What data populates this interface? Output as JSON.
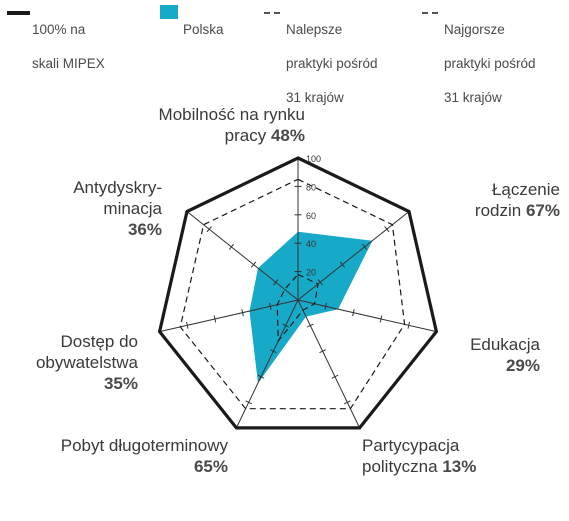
{
  "legend": {
    "max": {
      "line1": "100% na",
      "line2": "skali MIPEX"
    },
    "polska": {
      "label": "Polska"
    },
    "best": {
      "line1": "Nalepsze",
      "line2": "praktyki pośród",
      "line3": "31 krajów"
    },
    "worst": {
      "line1": "Najgorsze",
      "line2": "praktyki pośród",
      "line3": "31 krajów"
    }
  },
  "colors": {
    "polska": "#17a9c8",
    "max_line": "#1a1a1a",
    "dashed": "#1a1a1a",
    "axis": "#333333"
  },
  "chart_data": {
    "type": "radar",
    "scale_max": 100,
    "scale_ticks": [
      "20",
      "40",
      "60",
      "80",
      "100"
    ],
    "axes": [
      {
        "key": "mobility",
        "name_lines": [
          "Mobilność na rynku",
          "pracy"
        ],
        "value_text": "48%",
        "value": 48
      },
      {
        "key": "family",
        "name_lines": [
          "Łączenie",
          "rodzin"
        ],
        "value_text": "67%",
        "value": 67
      },
      {
        "key": "education",
        "name_lines": [
          "Edukacja"
        ],
        "value_text": "29%",
        "value": 29
      },
      {
        "key": "political",
        "name_lines": [
          "Partycypacja",
          "polityczna"
        ],
        "value_text": "13%",
        "value": 13
      },
      {
        "key": "residence",
        "name_lines": [
          "Pobyt długoterminowy"
        ],
        "value_text": "65%",
        "value": 65
      },
      {
        "key": "citizenship",
        "name_lines": [
          "Dostęp do",
          "obywatelstwa"
        ],
        "value_text": "35%",
        "value": 35
      },
      {
        "key": "antidiscrimination",
        "name_lines": [
          "Antydyskry-",
          "minacja"
        ],
        "value_text": "36%",
        "value": 36
      }
    ],
    "series": [
      {
        "name": "100% na skali MIPEX",
        "values": [
          100,
          100,
          100,
          100,
          100,
          100,
          100
        ],
        "style": "solid-thick"
      },
      {
        "name": "Polska",
        "values": [
          48,
          67,
          29,
          13,
          65,
          35,
          36
        ],
        "style": "filled"
      },
      {
        "name": "Nalepsze praktyki pośród 31 krajów",
        "values": [
          85,
          85,
          77,
          85,
          85,
          85,
          85
        ],
        "style": "dashed"
      },
      {
        "name": "Najgorsze praktyki pośród 31 krajów",
        "values": [
          18,
          18,
          12,
          8,
          32,
          15,
          12
        ],
        "style": "dashed"
      }
    ]
  }
}
